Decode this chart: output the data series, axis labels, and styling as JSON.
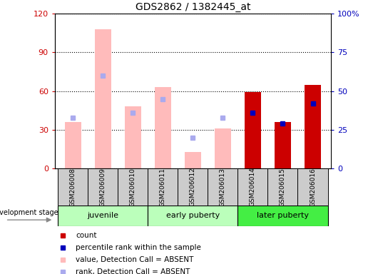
{
  "title": "GDS2862 / 1382445_at",
  "samples": [
    "GSM206008",
    "GSM206009",
    "GSM206010",
    "GSM206011",
    "GSM206012",
    "GSM206013",
    "GSM206014",
    "GSM206015",
    "GSM206016"
  ],
  "count_red": [
    0,
    0,
    0,
    0,
    0,
    0,
    59,
    36,
    65
  ],
  "value_pink": [
    36,
    108,
    48,
    63,
    13,
    31,
    0,
    0,
    0
  ],
  "rank_blue_dark": [
    0,
    0,
    0,
    0,
    0,
    0,
    36,
    29,
    42
  ],
  "rank_blue_light": [
    33,
    60,
    36,
    45,
    20,
    33,
    0,
    0,
    0
  ],
  "ylim_left": [
    0,
    120
  ],
  "ylim_right": [
    0,
    100
  ],
  "yticks_left": [
    0,
    30,
    60,
    90,
    120
  ],
  "yticks_right": [
    0,
    25,
    50,
    75,
    100
  ],
  "ytick_labels_left": [
    "0",
    "30",
    "60",
    "90",
    "120"
  ],
  "ytick_labels_right": [
    "0",
    "25",
    "50",
    "75",
    "100%"
  ],
  "groups": [
    {
      "label": "juvenile",
      "start": 0,
      "end": 3,
      "color": "#bbffbb"
    },
    {
      "label": "early puberty",
      "start": 3,
      "end": 6,
      "color": "#bbffbb"
    },
    {
      "label": "later puberty",
      "start": 6,
      "end": 9,
      "color": "#44ee44"
    }
  ],
  "colors": {
    "bar_red": "#cc0000",
    "bar_pink": "#ffbbbb",
    "dot_blue_dark": "#0000bb",
    "dot_blue_light": "#aaaaee",
    "sample_bg": "#cccccc",
    "grid": "black"
  },
  "legend_labels": [
    "count",
    "percentile rank within the sample",
    "value, Detection Call = ABSENT",
    "rank, Detection Call = ABSENT"
  ],
  "legend_colors": [
    "#cc0000",
    "#0000bb",
    "#ffbbbb",
    "#aaaaee"
  ]
}
